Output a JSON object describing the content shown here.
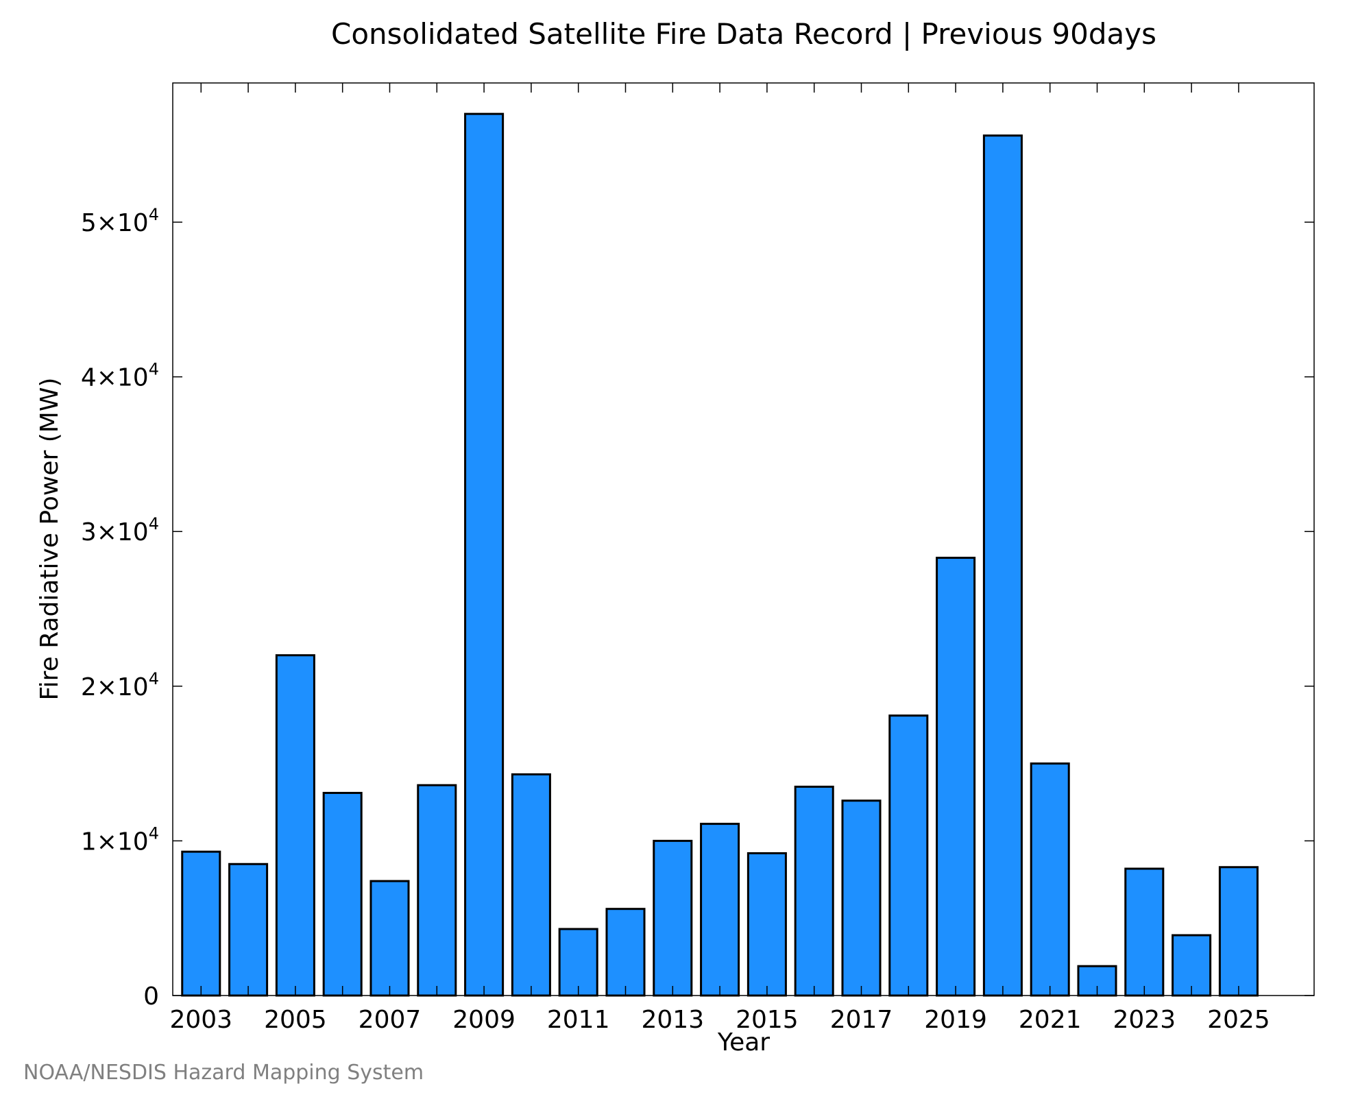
{
  "chart_data": {
    "type": "bar",
    "title": "Consolidated Satellite Fire Data Record | Previous 90days",
    "xlabel": "Year",
    "ylabel": "Fire Radiative Power (MW)",
    "categories": [
      "2003",
      "2004",
      "2005",
      "2006",
      "2007",
      "2008",
      "2009",
      "2010",
      "2011",
      "2012",
      "2013",
      "2014",
      "2015",
      "2016",
      "2017",
      "2018",
      "2019",
      "2020",
      "2021",
      "2022",
      "2023",
      "2024",
      "2025"
    ],
    "values": [
      9300,
      8500,
      22000,
      13100,
      7400,
      13600,
      57000,
      14300,
      4300,
      5600,
      10000,
      11100,
      9200,
      13500,
      12600,
      18100,
      28300,
      55600,
      15000,
      1900,
      8200,
      3900,
      8300
    ],
    "x_tick_labels": [
      "2003",
      "2005",
      "2007",
      "2009",
      "2011",
      "2013",
      "2015",
      "2017",
      "2019",
      "2021",
      "2023",
      "2025"
    ],
    "y_ticks": [
      {
        "value": 0,
        "mantissa": "0",
        "exp": ""
      },
      {
        "value": 10000,
        "mantissa": "1×10",
        "exp": "4"
      },
      {
        "value": 20000,
        "mantissa": "2×10",
        "exp": "4"
      },
      {
        "value": 30000,
        "mantissa": "3×10",
        "exp": "4"
      },
      {
        "value": 40000,
        "mantissa": "4×10",
        "exp": "4"
      },
      {
        "value": 50000,
        "mantissa": "5×10",
        "exp": "4"
      }
    ],
    "ylim": [
      0,
      59000
    ],
    "xlim": [
      2002.4,
      2026.6
    ],
    "bar_color": "#1E90FF",
    "bar_edge_color": "#000000",
    "grid": false,
    "legend": "none"
  },
  "credit": "NOAA/NESDIS Hazard Mapping System"
}
